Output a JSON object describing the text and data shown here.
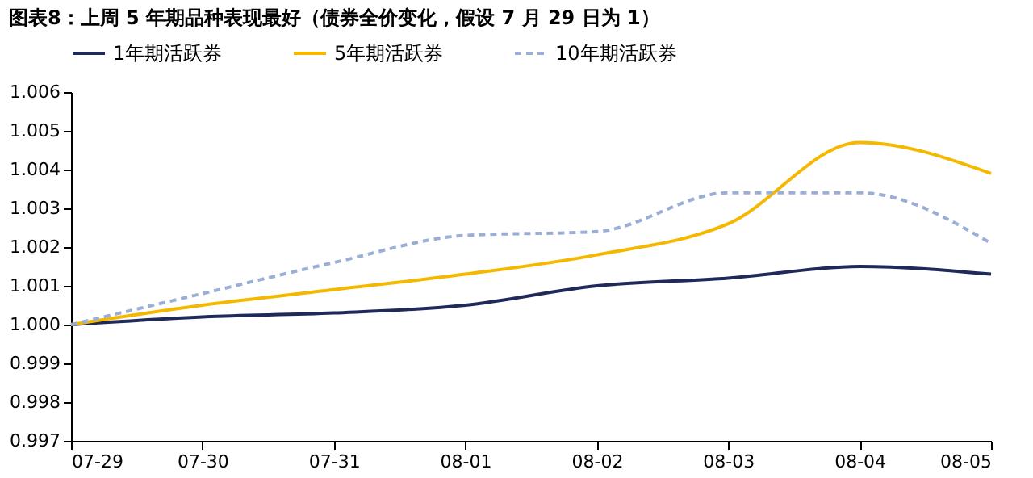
{
  "chart_data": {
    "type": "line",
    "title": "图表8：上周 5 年期品种表现最好（债券全价变化，假设 7 月 29 日为 1）",
    "categories": [
      "07-29",
      "07-30",
      "07-31",
      "08-01",
      "08-02",
      "08-03",
      "08-04",
      "08-05"
    ],
    "series": [
      {
        "name": "1年期活跃券",
        "color": "#1f2a5a",
        "line_style": "solid",
        "values": [
          1.0,
          1.0002,
          1.0003,
          1.0005,
          1.001,
          1.0012,
          1.0015,
          1.0013
        ]
      },
      {
        "name": "5年期活跃券",
        "color": "#f5b800",
        "line_style": "solid",
        "values": [
          1.0,
          1.0005,
          1.0009,
          1.0013,
          1.0018,
          1.0026,
          1.0047,
          1.0039
        ]
      },
      {
        "name": "10年期活跃券",
        "color": "#9aaed6",
        "line_style": "dashed",
        "values": [
          1.0,
          1.0008,
          1.0016,
          1.0023,
          1.0024,
          1.0034,
          1.0034,
          1.0021
        ]
      }
    ],
    "ylim": [
      0.997,
      1.006
    ],
    "yticks": [
      0.997,
      0.998,
      0.999,
      {
        "value": 1,
        "label": "1.000"
      },
      1.001,
      1.002,
      1.003,
      1.004,
      1.005,
      1.006
    ],
    "grid": false,
    "legend": "top",
    "marker": "none"
  }
}
